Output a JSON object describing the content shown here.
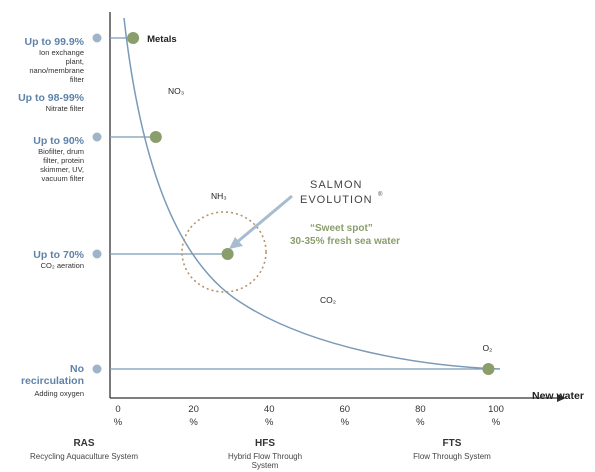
{
  "levels": [
    {
      "id": "metals",
      "title": "Up to 99.9%",
      "desc": [
        "Ion exchange",
        "plant,",
        "nano/membrane",
        "filter"
      ],
      "x_value": 4,
      "point_label": "Metals"
    },
    {
      "id": "nitrate",
      "title": "Up to 98-99%",
      "desc": [
        "Nitrate filter"
      ],
      "x_value": null,
      "point_label": ""
    },
    {
      "id": "bio",
      "title": "Up to 90%",
      "desc": [
        "Biofilter, drum",
        "filter, protein",
        "skimmer, UV,",
        "vacuum filter"
      ],
      "x_value": 10,
      "point_label": ""
    },
    {
      "id": "co2",
      "title": "Up to 70%",
      "desc": [
        "CO₂ aeration"
      ],
      "x_value": 29,
      "point_label": ""
    },
    {
      "id": "none",
      "title": [
        "No",
        "recirculation"
      ],
      "desc": [
        "Adding oxygen"
      ],
      "x_value": 98,
      "point_label": "O₂"
    }
  ],
  "curve_labels": [
    {
      "id": "no3",
      "text": "NO₃"
    },
    {
      "id": "nh3",
      "text": "NH₃"
    },
    {
      "id": "co2",
      "text": "CO₂"
    }
  ],
  "x_ticks": [
    {
      "value": 0,
      "label": "0",
      "unit": "%"
    },
    {
      "value": 20,
      "label": "20",
      "unit": "%"
    },
    {
      "value": 40,
      "label": "40",
      "unit": "%"
    },
    {
      "value": 60,
      "label": "60",
      "unit": "%"
    },
    {
      "value": 80,
      "label": "80",
      "unit": "%"
    },
    {
      "value": 100,
      "label": "100",
      "unit": "%"
    }
  ],
  "x_axis_title": "New water",
  "systems": [
    {
      "id": "ras",
      "abbr": "RAS",
      "name": [
        "Recycling Aquaculture System"
      ]
    },
    {
      "id": "hfs",
      "abbr": "HFS",
      "name": [
        "Hybrid Flow Through",
        "System"
      ]
    },
    {
      "id": "fts",
      "abbr": "FTS",
      "name": [
        "Flow Through System"
      ]
    }
  ],
  "sweet_spot": {
    "title": "“Sweet spot”",
    "subtitle": "30-35%  fresh sea water"
  },
  "logo": {
    "line1": "SALMON",
    "line2": "EVOLUTION"
  },
  "colors": {
    "curve": "#7a9ab8",
    "point": "#8a9e6b",
    "dot": "#9fb4c8",
    "sweet": "#8a9e6b",
    "circle": "#b49468",
    "arrow": "#a7bccf",
    "title": "#5f82a8"
  }
}
